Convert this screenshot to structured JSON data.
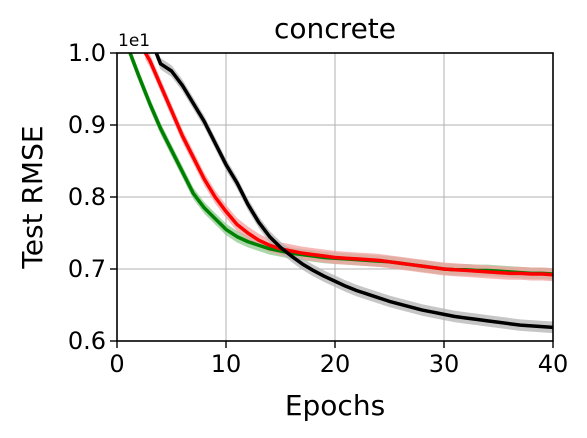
{
  "chart_data": {
    "type": "line",
    "title": "concrete",
    "xlabel": "Epochs",
    "ylabel": "Test RMSE",
    "y_offset_label": "1e1",
    "xlim": [
      0,
      40
    ],
    "ylim": [
      0.6,
      1.0
    ],
    "x_ticks": [
      0,
      10,
      20,
      30,
      40
    ],
    "y_ticks": [
      0.6,
      0.7,
      0.8,
      0.9,
      1.0
    ],
    "x_tick_labels": [
      "0",
      "10",
      "20",
      "30",
      "40"
    ],
    "y_tick_labels": [
      "0.6",
      "0.7",
      "0.8",
      "0.9",
      "1.0"
    ],
    "grid": true,
    "legend": "none",
    "series": [
      {
        "color": "#008000",
        "band_color": "#8fc98f",
        "x": [
          1.2,
          2,
          3,
          4,
          5,
          6,
          7,
          8,
          9,
          10,
          11,
          12,
          13,
          14,
          15,
          16,
          17,
          18,
          19,
          20,
          21,
          22,
          23,
          24,
          25,
          26,
          27,
          28,
          29,
          30,
          31,
          32,
          33,
          34,
          35,
          36,
          37,
          38,
          39,
          40
        ],
        "y": [
          1.0,
          0.968,
          0.93,
          0.895,
          0.865,
          0.835,
          0.805,
          0.785,
          0.77,
          0.755,
          0.745,
          0.738,
          0.733,
          0.728,
          0.725,
          0.722,
          0.72,
          0.718,
          0.716,
          0.715,
          0.714,
          0.713,
          0.712,
          0.711,
          0.71,
          0.708,
          0.706,
          0.704,
          0.702,
          0.7,
          0.699,
          0.699,
          0.698,
          0.698,
          0.697,
          0.696,
          0.695,
          0.694,
          0.694,
          0.693
        ],
        "band": 0.008
      },
      {
        "color": "#ff0000",
        "band_color": "#f4a0a0",
        "x": [
          2.6,
          3,
          4,
          5,
          6,
          7,
          8,
          9,
          10,
          11,
          12,
          13,
          14,
          15,
          16,
          17,
          18,
          19,
          20,
          21,
          22,
          23,
          24,
          25,
          26,
          27,
          28,
          29,
          30,
          31,
          32,
          33,
          34,
          35,
          36,
          37,
          38,
          39,
          40
        ],
        "y": [
          1.0,
          0.99,
          0.955,
          0.92,
          0.885,
          0.855,
          0.825,
          0.8,
          0.78,
          0.762,
          0.75,
          0.74,
          0.733,
          0.728,
          0.725,
          0.722,
          0.72,
          0.718,
          0.716,
          0.715,
          0.714,
          0.713,
          0.712,
          0.71,
          0.708,
          0.706,
          0.704,
          0.702,
          0.7,
          0.699,
          0.698,
          0.697,
          0.696,
          0.695,
          0.694,
          0.694,
          0.693,
          0.693,
          0.692
        ],
        "band": 0.009
      },
      {
        "color": "#000000",
        "band_color": "#b3b3b3",
        "x": [
          3.6,
          4,
          5,
          6,
          7,
          8,
          9,
          10,
          11,
          12,
          13,
          14,
          15,
          16,
          17,
          18,
          19,
          20,
          21,
          22,
          23,
          24,
          25,
          26,
          27,
          28,
          29,
          30,
          31,
          32,
          33,
          34,
          35,
          36,
          37,
          38,
          39,
          40
        ],
        "y": [
          1.0,
          0.985,
          0.975,
          0.955,
          0.93,
          0.905,
          0.875,
          0.845,
          0.82,
          0.79,
          0.765,
          0.745,
          0.73,
          0.718,
          0.707,
          0.698,
          0.69,
          0.683,
          0.676,
          0.67,
          0.665,
          0.66,
          0.655,
          0.651,
          0.647,
          0.643,
          0.64,
          0.637,
          0.634,
          0.632,
          0.63,
          0.628,
          0.626,
          0.624,
          0.622,
          0.621,
          0.62,
          0.619
        ],
        "band": 0.008
      }
    ]
  }
}
